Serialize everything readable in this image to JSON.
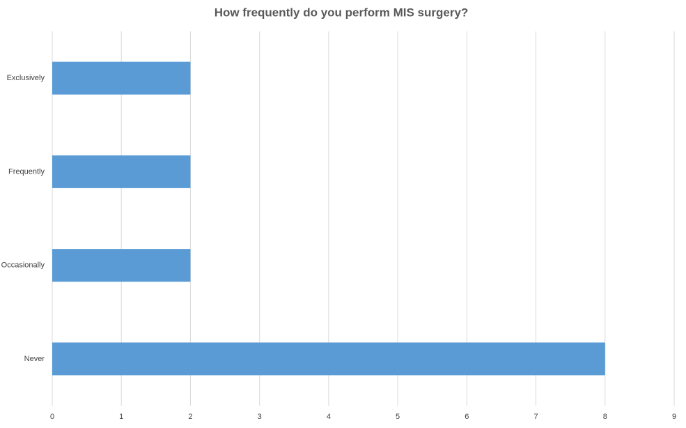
{
  "chart_data": {
    "type": "bar",
    "orientation": "horizontal",
    "title": "How frequently do you perform MIS surgery?",
    "categories": [
      "Exclusively",
      "Frequently",
      "Occasionally",
      "Never"
    ],
    "values": [
      2,
      2,
      2,
      8
    ],
    "color": "#5b9bd5",
    "xlim": [
      0,
      9
    ],
    "xticks": [
      0,
      1,
      2,
      3,
      4,
      5,
      6,
      7,
      8,
      9
    ],
    "grid": true
  }
}
